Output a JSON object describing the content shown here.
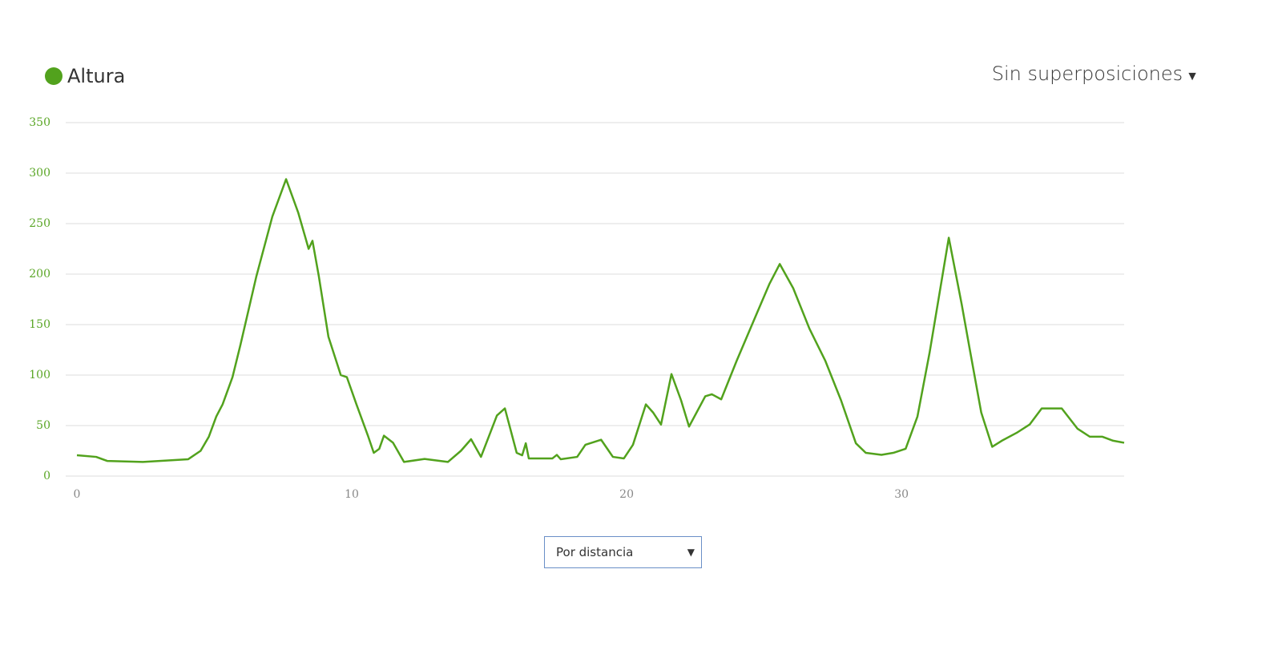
{
  "chart_data": {
    "type": "line",
    "series": [
      {
        "name": "Altura",
        "color": "#52a21d",
        "values": [
          20.6,
          19,
          15,
          14,
          16.7,
          25,
          39,
          59,
          71,
          98,
          130,
          198,
          257,
          294,
          261,
          225,
          233,
          198,
          138,
          100,
          98,
          71,
          39,
          23,
          27,
          40,
          33,
          14,
          17,
          14,
          25,
          36.5,
          19,
          60,
          67,
          23,
          20.6,
          32.5,
          17.5,
          17.5,
          21,
          16.7,
          19,
          31,
          36,
          19,
          17.5,
          31,
          71,
          63,
          51,
          101,
          75,
          49,
          79,
          81,
          76,
          114,
          162,
          190,
          210,
          186,
          146,
          114,
          75,
          32.5,
          23,
          21,
          23,
          27,
          59,
          122,
          236,
          170,
          126,
          63,
          29,
          35,
          43,
          51,
          67,
          67,
          47,
          39,
          39,
          35,
          33
        ]
      }
    ],
    "x": [
      0,
      0.7,
      1.1,
      2.4,
      4.05,
      4.5,
      4.8,
      5.07,
      5.3,
      5.66,
      5.95,
      6.53,
      7.11,
      7.61,
      8.05,
      8.43,
      8.57,
      8.8,
      9.15,
      9.6,
      9.82,
      10.17,
      10.6,
      10.8,
      11.0,
      11.17,
      11.5,
      11.9,
      12.65,
      13.5,
      13.97,
      14.34,
      14.7,
      15.28,
      15.57,
      16.0,
      16.2,
      16.33,
      16.44,
      17.3,
      17.46,
      17.6,
      18.2,
      18.5,
      19.07,
      19.5,
      19.9,
      20.23,
      20.7,
      20.96,
      21.25,
      21.63,
      21.98,
      22.27,
      22.86,
      23.1,
      23.44,
      24.0,
      24.75,
      25.19,
      25.57,
      26.06,
      26.65,
      27.23,
      27.8,
      28.34,
      28.7,
      29.27,
      29.7,
      30.15,
      30.58,
      31.02,
      31.72,
      32.19,
      32.48,
      32.9,
      33.3,
      33.65,
      34.2,
      34.66,
      35.1,
      35.83,
      36.4,
      36.85,
      37.3,
      37.7,
      38.1
    ],
    "xlim": [
      0,
      38.1
    ],
    "xticks": [
      0,
      10,
      20,
      30
    ],
    "ylim": [
      0,
      350
    ],
    "yticks": [
      0,
      50,
      100,
      150,
      200,
      250,
      300,
      350
    ],
    "grid": true
  },
  "ui": {
    "overlay_menu": "Sin superposiciones",
    "x_mode": "Por distancia"
  }
}
